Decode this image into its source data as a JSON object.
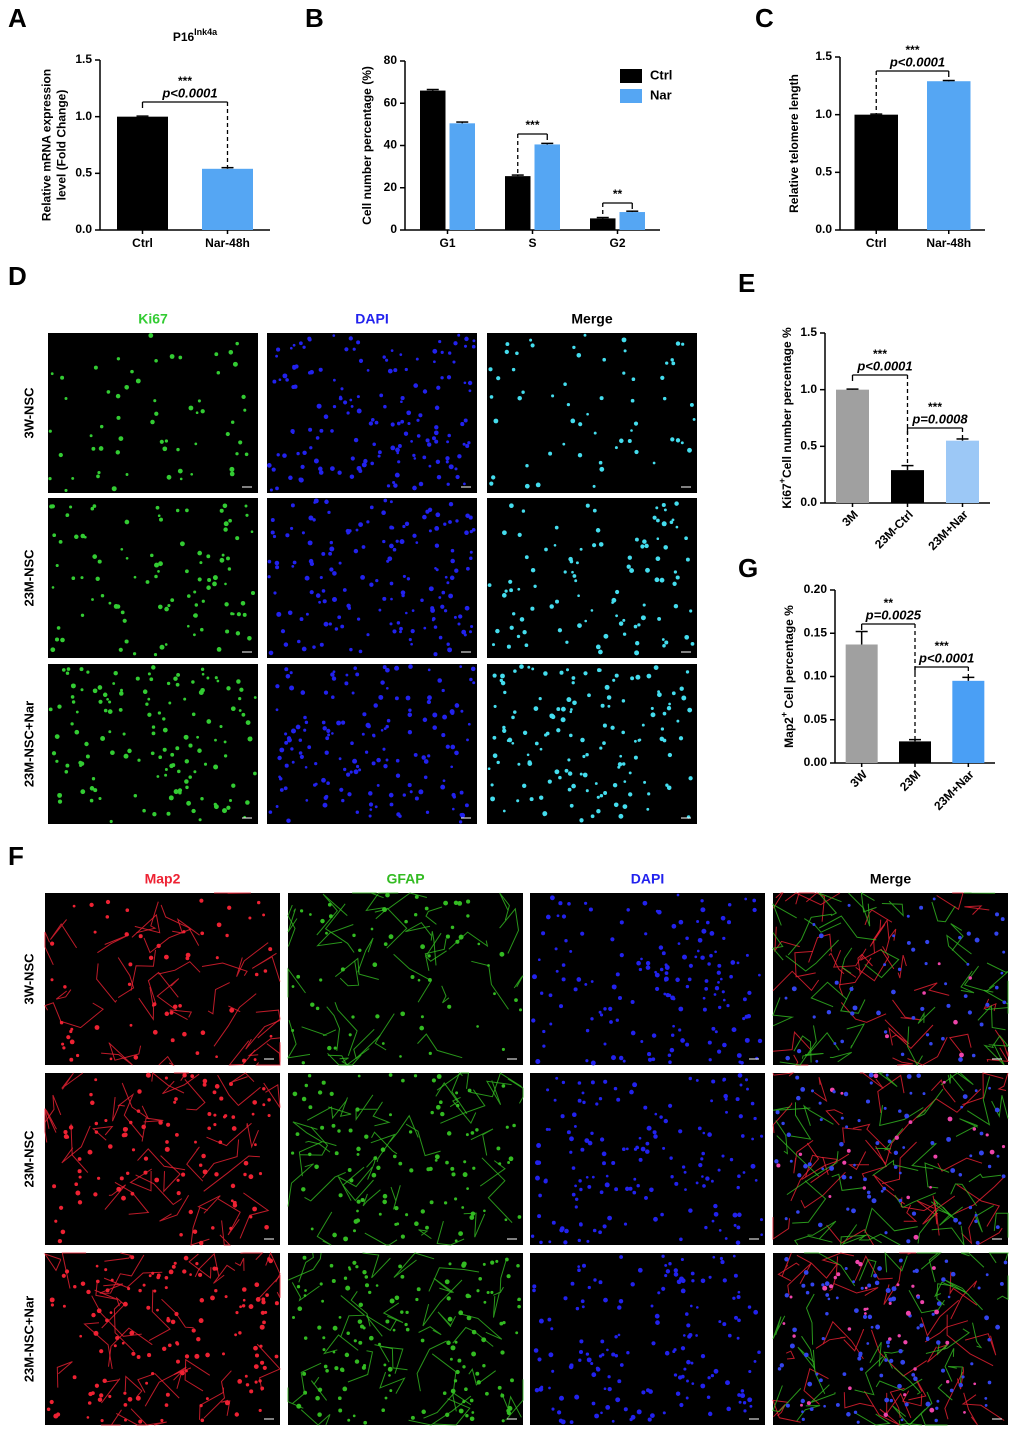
{
  "chart_data": [
    {
      "type": "bar",
      "panel": "A",
      "title": "P16",
      "title_sup": "Ink4a",
      "ylabel": [
        "Relative  mRNA expression",
        "level (Fold Change)"
      ],
      "categories": [
        "Ctrl",
        "Nar-48h"
      ],
      "values": [
        1.0,
        0.54
      ],
      "errors": [
        0.005,
        0.01
      ],
      "colors": [
        "#000000",
        "#55a6f3"
      ],
      "ylim": [
        0,
        1.5
      ],
      "yticks": [
        {
          "value": 0,
          "label": "0.0"
        },
        0.5,
        {
          "value": 1,
          "label": "1.0"
        },
        1.5
      ],
      "annotations": [
        {
          "stars": "***",
          "p": "p<0.0001"
        }
      ]
    },
    {
      "type": "bar",
      "panel": "B",
      "ylabel": [
        "Cell number percentage (%)"
      ],
      "categories": [
        "G1",
        "S",
        "G2"
      ],
      "series": [
        {
          "name": "Ctrl",
          "color": "#000000",
          "values": [
            66,
            25.5,
            5.5
          ],
          "errors": [
            0.5,
            0.5,
            0.4
          ]
        },
        {
          "name": "Nar",
          "color": "#55a6f3",
          "values": [
            50.5,
            40.5,
            8.5
          ],
          "errors": [
            0.6,
            0.5,
            0.4
          ]
        }
      ],
      "ylim": [
        0,
        80
      ],
      "yticks": [
        0,
        20,
        40,
        60,
        80
      ],
      "annotations": [
        {
          "stars": "***"
        },
        {
          "stars": "**"
        }
      ]
    },
    {
      "type": "bar",
      "panel": "C",
      "ylabel": [
        "Relative telomere length"
      ],
      "categories": [
        "Ctrl",
        "Nar-48h"
      ],
      "values": [
        1.0,
        1.29
      ],
      "errors": [
        0.005,
        0.006
      ],
      "colors": [
        "#000000",
        "#55a6f3"
      ],
      "ylim": [
        0,
        1.5
      ],
      "yticks": [
        {
          "value": 0,
          "label": "0.0"
        },
        0.5,
        {
          "value": 1,
          "label": "1.0"
        },
        1.5
      ],
      "annotations": [
        {
          "stars": "***",
          "p": "p<0.0001"
        }
      ]
    },
    {
      "type": "bar",
      "panel": "E",
      "ylabel_parts": [
        "Ki67",
        "+",
        "Cell number percentage %"
      ],
      "categories": [
        "3M",
        "23M-Ctrl",
        "23M+Nar"
      ],
      "values": [
        1.0,
        0.29,
        0.55
      ],
      "errors": [
        0.005,
        0.04,
        0.015
      ],
      "colors": [
        "#a0a0a0",
        "#000000",
        "#9cc8f6"
      ],
      "ylim": [
        0,
        1.5
      ],
      "yticks": [
        {
          "value": 0,
          "label": "0.0"
        },
        0.5,
        {
          "value": 1,
          "label": "1.0"
        },
        1.5
      ],
      "annotations": [
        {
          "stars": "***",
          "p": "p<0.0001"
        },
        {
          "stars": "***",
          "p": "p=0.0008"
        }
      ]
    },
    {
      "type": "bar",
      "panel": "G",
      "ylabel_parts": [
        "Map2",
        "+",
        " Cell percentage %"
      ],
      "categories": [
        "3W",
        "23M",
        "23M+Nar"
      ],
      "values": [
        0.137,
        0.025,
        0.095
      ],
      "errors": [
        0.015,
        0.002,
        0.004
      ],
      "colors": [
        "#a0a0a0",
        "#000000",
        "#4a9ff5"
      ],
      "ylim": [
        0,
        0.2
      ],
      "yticks": [
        {
          "value": 0,
          "label": "0.00"
        },
        {
          "value": 0.05,
          "label": "0.05"
        },
        {
          "value": 0.1,
          "label": "0.10"
        },
        {
          "value": 0.15,
          "label": "0.15"
        },
        {
          "value": 0.2,
          "label": "0.20"
        }
      ],
      "annotations": [
        {
          "stars": "**",
          "p": "p=0.0025"
        },
        {
          "stars": "***",
          "p": "p<0.0001"
        }
      ]
    }
  ],
  "images": [
    {
      "panel": "D",
      "columns": [
        {
          "label": "Ki67",
          "color": "#33cc33"
        },
        {
          "label": "DAPI",
          "color": "#2222ee"
        },
        {
          "label": "Merge",
          "color": "#000000"
        }
      ],
      "rows": [
        "3W-NSC",
        "23M-NSC",
        "23M-NSC+Nar"
      ]
    },
    {
      "panel": "F",
      "columns": [
        {
          "label": "Map2",
          "color": "#ee2233"
        },
        {
          "label": "GFAP",
          "color": "#33bb22"
        },
        {
          "label": "DAPI",
          "color": "#2222ee"
        },
        {
          "label": "Merge",
          "color": "#000000"
        }
      ],
      "rows": [
        "3W-NSC",
        "23M-NSC",
        "23M-NSC+Nar"
      ]
    }
  ]
}
